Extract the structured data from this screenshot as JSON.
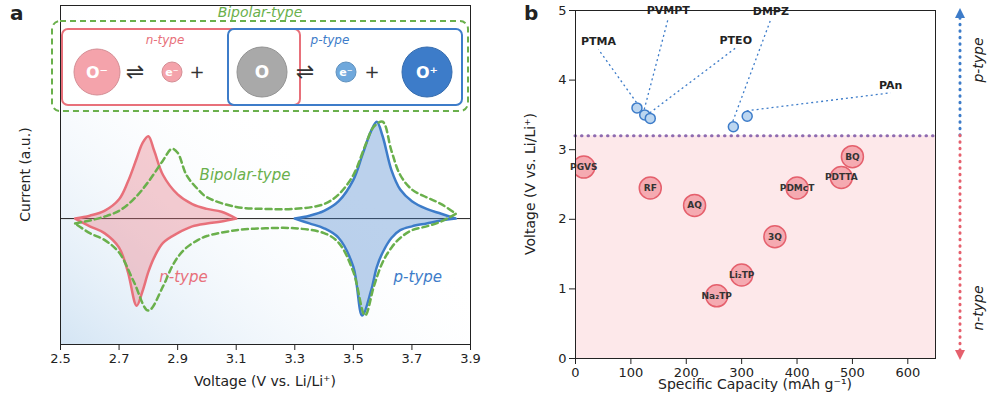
{
  "chart_data": [
    {
      "panel": "a",
      "type": "line",
      "x_label": "Voltage (V vs. Li/Li⁺)",
      "y_label": "Current (a.u.)",
      "xlim": [
        2.5,
        3.9
      ],
      "xticks": [
        2.5,
        2.7,
        2.9,
        3.1,
        3.3,
        3.5,
        3.7,
        3.9
      ],
      "ylim": [
        -1.3,
        2.2
      ],
      "tick_labels": "x",
      "series": [
        {
          "name": "n-type",
          "type": "area",
          "color": "#e8707a",
          "line_style": "solid",
          "x": [
            2.55,
            2.6,
            2.65,
            2.7,
            2.73,
            2.76,
            2.78,
            2.8,
            2.82,
            2.85,
            2.9,
            2.95,
            3.0,
            3.05,
            3.1
          ],
          "forward": [
            0,
            0.03,
            0.08,
            0.2,
            0.38,
            0.62,
            0.78,
            0.85,
            0.7,
            0.45,
            0.25,
            0.15,
            0.1,
            0.07,
            0
          ],
          "reverse": [
            0,
            -0.08,
            -0.15,
            -0.3,
            -0.55,
            -0.9,
            -0.75,
            -0.55,
            -0.4,
            -0.25,
            -0.15,
            -0.08,
            -0.05,
            -0.03,
            0
          ],
          "label_x": 2.92,
          "label_y": -0.6
        },
        {
          "name": "p-type",
          "type": "area",
          "color": "#3d7cc9",
          "line_style": "solid",
          "x": [
            3.3,
            3.35,
            3.4,
            3.45,
            3.5,
            3.53,
            3.56,
            3.58,
            3.6,
            3.63,
            3.66,
            3.7,
            3.75,
            3.8,
            3.85
          ],
          "forward": [
            0,
            0.03,
            0.08,
            0.18,
            0.4,
            0.65,
            0.9,
            1.0,
            0.85,
            0.5,
            0.3,
            0.18,
            0.1,
            0.05,
            0
          ],
          "reverse": [
            0,
            -0.05,
            -0.1,
            -0.2,
            -0.5,
            -1.0,
            -0.75,
            -0.5,
            -0.35,
            -0.2,
            -0.12,
            -0.08,
            -0.05,
            -0.02,
            0
          ],
          "label_x": 3.72,
          "label_y": -0.6
        },
        {
          "name": "Bipolar-type",
          "type": "line",
          "color": "#6ab04c",
          "line_style": "dashed",
          "x": [
            2.55,
            2.6,
            2.65,
            2.7,
            2.75,
            2.8,
            2.85,
            2.88,
            2.9,
            2.93,
            2.97,
            3.0,
            3.1,
            3.2,
            3.3,
            3.4,
            3.45,
            3.5,
            3.54,
            3.57,
            3.6,
            3.63,
            3.66,
            3.7,
            3.75,
            3.8,
            3.85
          ],
          "forward": [
            -0.05,
            -0.02,
            0.02,
            0.08,
            0.2,
            0.38,
            0.6,
            0.72,
            0.68,
            0.45,
            0.3,
            0.22,
            0.12,
            0.1,
            0.1,
            0.15,
            0.25,
            0.45,
            0.75,
            0.95,
            1.0,
            0.7,
            0.45,
            0.3,
            0.22,
            0.15,
            0.05
          ],
          "reverse": [
            -0.05,
            -0.15,
            -0.22,
            -0.35,
            -0.65,
            -0.95,
            -0.7,
            -0.5,
            -0.4,
            -0.3,
            -0.22,
            -0.18,
            -0.12,
            -0.1,
            -0.1,
            -0.15,
            -0.25,
            -0.55,
            -1.0,
            -0.7,
            -0.45,
            -0.3,
            -0.2,
            -0.12,
            -0.08,
            -0.03,
            0.05
          ],
          "label_x": 3.13,
          "label_y": 0.45
        }
      ],
      "inset": {
        "title": "Bipolar-type",
        "boxes": [
          "n-type",
          "p-type"
        ],
        "species": [
          "O⁻",
          "e⁻",
          "O",
          "e⁻",
          "O⁺"
        ],
        "plus": "+",
        "equilibrium": "⇌"
      }
    },
    {
      "panel": "b",
      "type": "scatter",
      "x_label": "Specific Capacity (mAh g⁻¹)",
      "y_label": "Voltage (V vs. Li/Li⁺)",
      "xlim": [
        0,
        650
      ],
      "xticks": [
        0,
        100,
        200,
        300,
        400,
        500,
        600
      ],
      "ylim": [
        0,
        5
      ],
      "yticks": [
        0,
        1,
        2,
        3,
        4,
        5
      ],
      "divider": 3.2,
      "series": [
        {
          "name": "p-type",
          "color": "#3d7cc9",
          "marker": "circle",
          "labels": [
            "PTMA",
            "PVMPT",
            "PTEO",
            "DMPZ",
            "PAn"
          ],
          "x": [
            111,
            125,
            135,
            285,
            310
          ],
          "values": [
            3.6,
            3.5,
            3.45,
            3.33,
            3.48
          ]
        },
        {
          "name": "n-type",
          "color": "#e5606d",
          "marker": "circle",
          "labels": [
            "PGVS",
            "RF",
            "AQ",
            "PDMcT",
            "3Q",
            "BQ",
            "PDTTA",
            "Li₂TP",
            "Na₂TP"
          ],
          "x": [
            15,
            135,
            215,
            400,
            360,
            500,
            480,
            300,
            255
          ],
          "values": [
            2.75,
            2.45,
            2.2,
            2.45,
            1.75,
            2.9,
            2.6,
            1.2,
            0.9
          ]
        }
      ]
    }
  ]
}
